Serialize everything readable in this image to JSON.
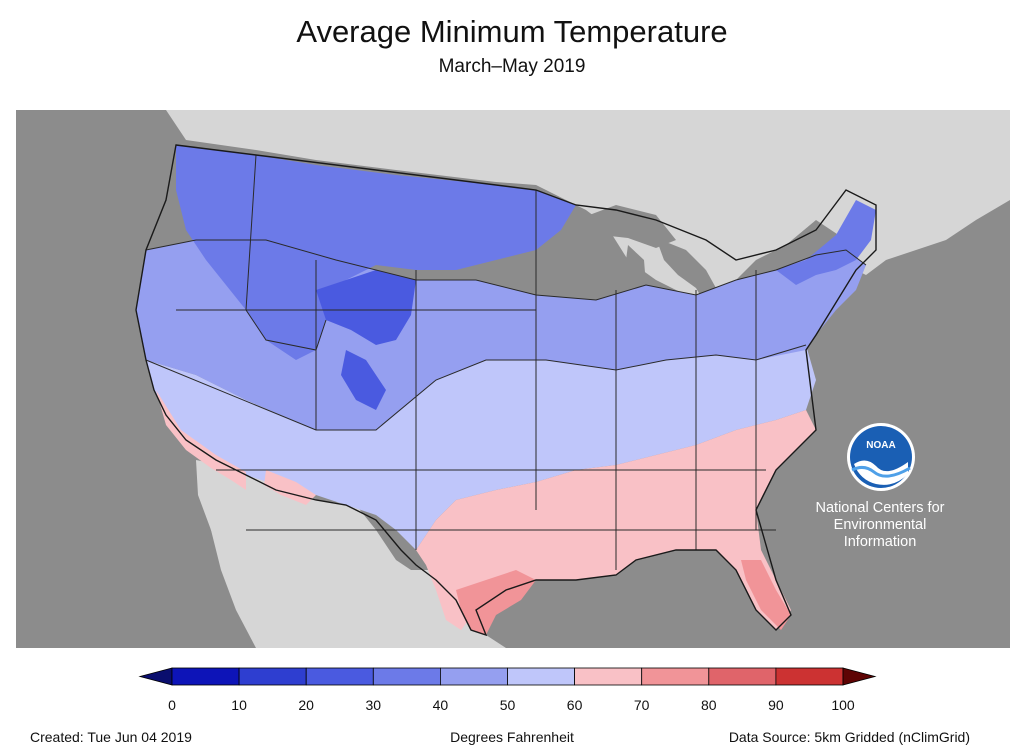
{
  "header": {
    "title": "Average Minimum Temperature",
    "subtitle": "March–May 2019"
  },
  "map": {
    "region": "Contiguous United States",
    "water_color": "#8c8c8c",
    "land_outside_color": "#d6d6d6",
    "border_color": "#2a2a2a"
  },
  "logo": {
    "icon": "noaa-logo-icon",
    "mark_text": "NOAA",
    "lines": [
      "National Centers for",
      "Environmental",
      "Information"
    ]
  },
  "legend": {
    "unit_label": "Degrees Fahrenheit",
    "ticks": [
      "0",
      "10",
      "20",
      "30",
      "40",
      "50",
      "60",
      "70",
      "80",
      "90",
      "100"
    ],
    "colors": [
      "#0d14b8",
      "#2e3ed0",
      "#4a5ae0",
      "#6c7ae8",
      "#959ff0",
      "#bfc6fa",
      "#f9c1c6",
      "#f19498",
      "#e0646a",
      "#cc3232",
      "#b20f0f"
    ],
    "under_color": "#0a0e6e",
    "over_color": "#5e0404"
  },
  "footer": {
    "created": "Created: Tue Jun 04 2019",
    "source": "Data Source: 5km Gridded (nClimGrid)"
  }
}
